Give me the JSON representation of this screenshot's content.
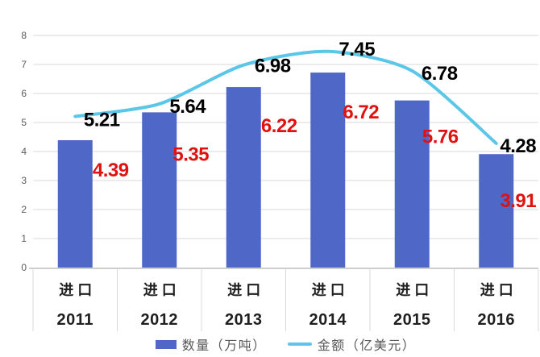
{
  "chart_data": {
    "type": "bar+line",
    "categories": [
      {
        "label": "进口",
        "year": "2011"
      },
      {
        "label": "进口",
        "year": "2012"
      },
      {
        "label": "进口",
        "year": "2013"
      },
      {
        "label": "进口",
        "year": "2014"
      },
      {
        "label": "进口",
        "year": "2015"
      },
      {
        "label": "进口",
        "year": "2016"
      }
    ],
    "y_axis": {
      "min": 0,
      "max": 8,
      "step": 1,
      "tick_labels": [
        "0",
        "1",
        "2",
        "3",
        "4",
        "5",
        "6",
        "7",
        "8"
      ]
    },
    "series": [
      {
        "name": "数量（万吨）",
        "type": "bar",
        "color": "#4F67C6",
        "label_color": "#E01111",
        "values": [
          4.39,
          5.35,
          6.22,
          6.72,
          5.76,
          3.91
        ]
      },
      {
        "name": "金额（亿美元）",
        "type": "line",
        "color": "#5BC6E8",
        "label_color": "#000000",
        "values": [
          5.21,
          5.64,
          6.98,
          7.45,
          6.78,
          4.28
        ]
      }
    ],
    "grid": true,
    "legend_position": "bottom",
    "colors": {
      "gridline": "#D9D9D9",
      "axis_line": "#BFBFBF",
      "tick_text": "#595959",
      "category_text": "#1F1F1F",
      "legend_text": "#595959"
    }
  }
}
